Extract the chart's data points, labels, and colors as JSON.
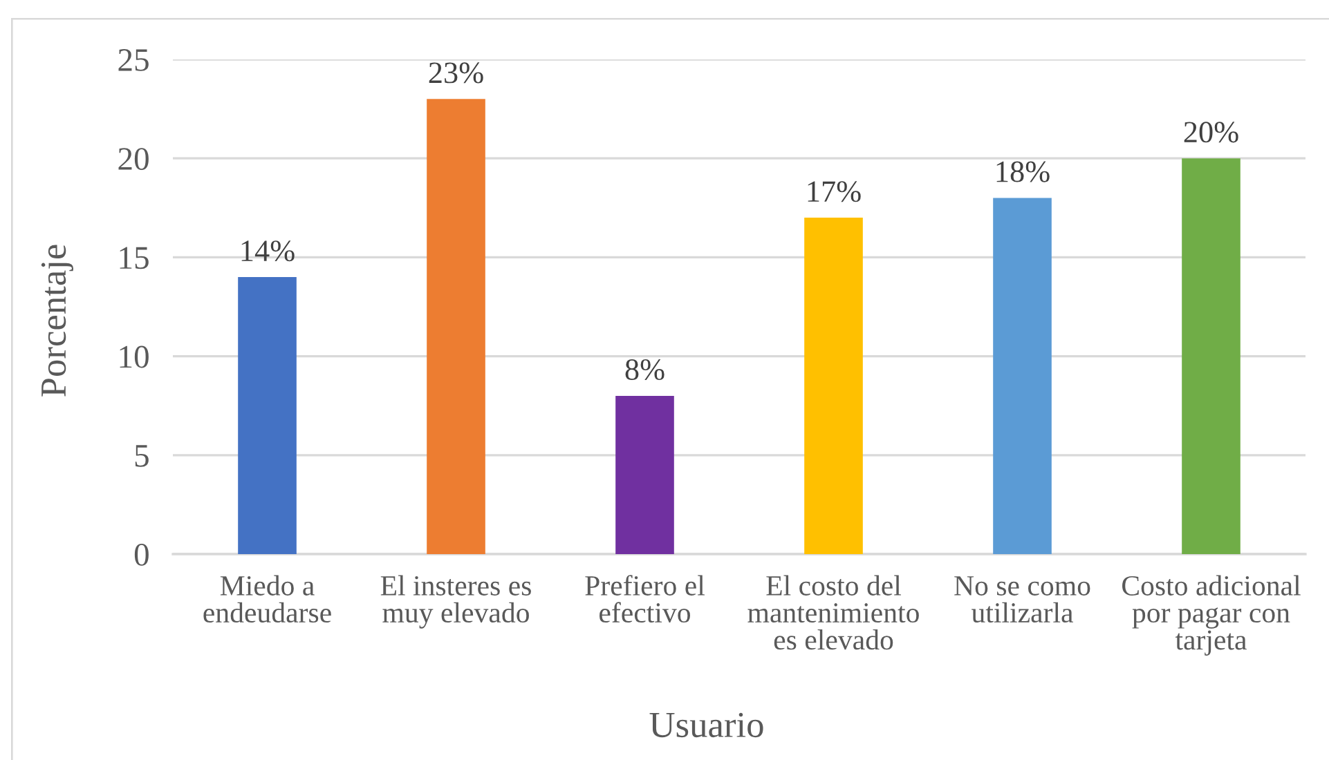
{
  "chart_data": {
    "type": "bar",
    "xlabel": "Usuario",
    "ylabel": "Porcentaje",
    "categories": [
      "Miedo a\nendeudarse",
      "El insteres es\nmuy elevado",
      "Prefiero el\nefectivo",
      "El costo del\nmantenimiento\nes elevado",
      "No se como\nutilizarla",
      "Costo adicional\npor pagar con\ntarjeta"
    ],
    "values": [
      14,
      23,
      8,
      17,
      18,
      20
    ],
    "colors": [
      "#4472c4",
      "#ed7d31",
      "#7030a0",
      "#ffc000",
      "#5b9bd5",
      "#70ad47"
    ],
    "value_labels": [
      "14%",
      "23%",
      "8%",
      "17%",
      "18%",
      "20%"
    ],
    "ylim": [
      0,
      25
    ],
    "yticks": [
      0,
      5,
      10,
      15,
      20,
      25
    ],
    "grid": "y"
  }
}
